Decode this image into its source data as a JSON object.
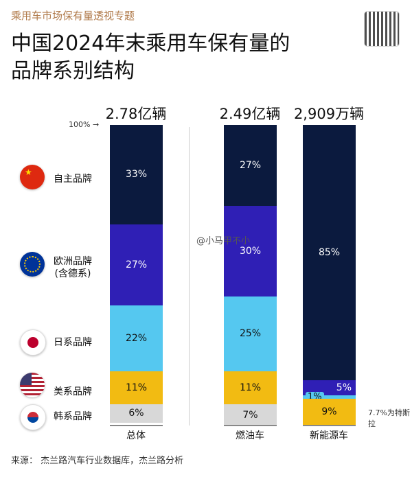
{
  "header": {
    "subtitle": "乘用车市场保有量透视专题",
    "title_line1": "中国2024年末乘用车保有量的",
    "title_line2": "品牌系别结构"
  },
  "colors": {
    "自主品牌": "#0b1a3e",
    "欧洲品牌": "#2f1fb5",
    "日系品牌": "#55c8f0",
    "美系品牌": "#f2bb12",
    "韩系品牌": "#d8d8d8"
  },
  "chart_data": {
    "type": "bar",
    "stacked": true,
    "unit": "%",
    "ylim": [
      0,
      100
    ],
    "axis_marker": "100% →",
    "categories": [
      "总体",
      "燃油车",
      "新能源车"
    ],
    "totals": [
      "2.78亿辆",
      "2.49亿辆",
      "2,909万辆"
    ],
    "series": [
      {
        "name": "自主品牌",
        "values": [
          33,
          27,
          85
        ],
        "labels": [
          "33%",
          "27%",
          "85%"
        ]
      },
      {
        "name": "欧洲品牌 (含德系)",
        "values": [
          27,
          30,
          5
        ],
        "labels": [
          "27%",
          "30%",
          "5%"
        ]
      },
      {
        "name": "日系品牌",
        "values": [
          22,
          25,
          1
        ],
        "labels": [
          "22%",
          "25%",
          "1%"
        ]
      },
      {
        "name": "美系品牌",
        "values": [
          11,
          11,
          9
        ],
        "labels": [
          "11%",
          "11%",
          "9%"
        ]
      },
      {
        "name": "韩系品牌",
        "values": [
          6,
          7,
          0
        ],
        "labels": [
          "6%",
          "7%",
          ""
        ]
      }
    ],
    "annotation": "7.7%为特斯拉"
  },
  "legend": [
    {
      "l1": "自主品牌",
      "l2": ""
    },
    {
      "l1": "欧洲品牌",
      "l2": "(含德系)"
    },
    {
      "l1": "日系品牌",
      "l2": ""
    },
    {
      "l1": "美系品牌",
      "l2": ""
    },
    {
      "l1": "韩系品牌",
      "l2": ""
    }
  ],
  "watermark": "@小马甲不小",
  "source": "来源：  杰兰路汽车行业数据库，杰兰路分析"
}
